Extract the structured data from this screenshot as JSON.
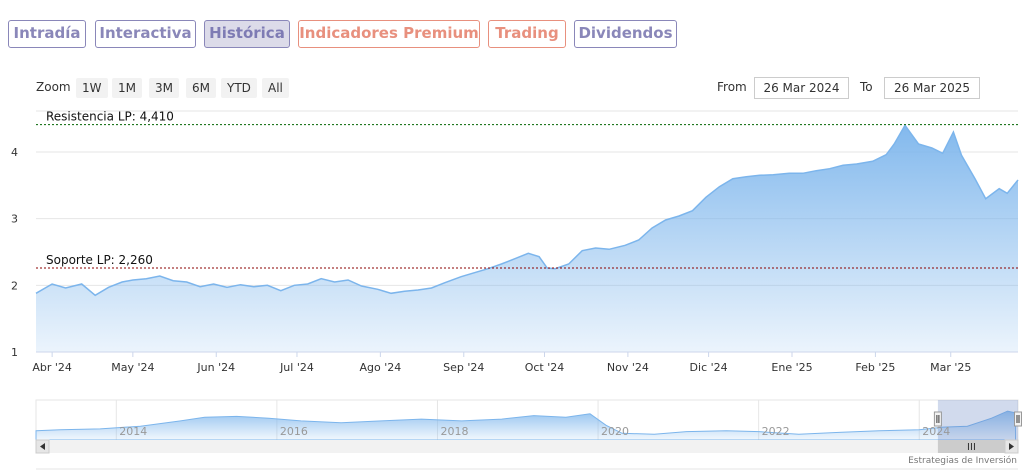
{
  "tabs": [
    {
      "label": "Intradía",
      "style": "purple"
    },
    {
      "label": "Interactiva",
      "style": "purple"
    },
    {
      "label": "Histórica",
      "style": "active"
    },
    {
      "label": "Indicadores Premium",
      "style": "salmon"
    },
    {
      "label": "Trading",
      "style": "salmon"
    },
    {
      "label": "Dividendos",
      "style": "purple"
    }
  ],
  "range_selector": {
    "zoom_label": "Zoom",
    "buttons": [
      "1W",
      "1M",
      "3M",
      "6M",
      "YTD",
      "All"
    ],
    "from_label": "From",
    "from_value": "26 Mar 2024",
    "to_label": "To",
    "to_value": "26 Mar 2025"
  },
  "credits": "Estrategias de Inversión",
  "colors": {
    "line": "#7cb5ec",
    "resistance": "#006400",
    "support": "#8b0000",
    "tab_purple": "#8a87b9",
    "tab_salmon": "#e8907e"
  },
  "chart_data": {
    "type": "area",
    "x_start": "2024-03-26",
    "x_end": "2025-03-26",
    "ylim": [
      1,
      4.6
    ],
    "y_ticks": [
      1,
      2,
      3,
      4
    ],
    "x_tick_labels": [
      {
        "label": "Abr '24",
        "date": "2024-04-01"
      },
      {
        "label": "May '24",
        "date": "2024-05-01"
      },
      {
        "label": "Jun '24",
        "date": "2024-06-01"
      },
      {
        "label": "Jul '24",
        "date": "2024-07-01"
      },
      {
        "label": "Ago '24",
        "date": "2024-08-01"
      },
      {
        "label": "Sep '24",
        "date": "2024-09-01"
      },
      {
        "label": "Oct '24",
        "date": "2024-10-01"
      },
      {
        "label": "Nov '24",
        "date": "2024-11-01"
      },
      {
        "label": "Dic '24",
        "date": "2024-12-01"
      },
      {
        "label": "Ene '25",
        "date": "2025-01-01"
      },
      {
        "label": "Feb '25",
        "date": "2025-02-01"
      },
      {
        "label": "Mar '25",
        "date": "2025-03-01"
      }
    ],
    "series": [
      {
        "x": [
          "2024-03-26",
          "2024-04-01",
          "2024-04-06",
          "2024-04-12",
          "2024-04-17",
          "2024-04-22",
          "2024-04-27",
          "2024-05-01",
          "2024-05-06",
          "2024-05-11",
          "2024-05-16",
          "2024-05-21",
          "2024-05-26",
          "2024-05-31",
          "2024-06-05",
          "2024-06-10",
          "2024-06-15",
          "2024-06-20",
          "2024-06-25",
          "2024-06-30",
          "2024-07-05",
          "2024-07-10",
          "2024-07-15",
          "2024-07-20",
          "2024-07-25",
          "2024-07-31",
          "2024-08-05",
          "2024-08-10",
          "2024-08-15",
          "2024-08-20",
          "2024-08-25",
          "2024-08-31",
          "2024-09-05",
          "2024-09-10",
          "2024-09-15",
          "2024-09-20",
          "2024-09-25",
          "2024-09-29",
          "2024-10-02",
          "2024-10-05",
          "2024-10-10",
          "2024-10-15",
          "2024-10-20",
          "2024-10-25",
          "2024-10-31",
          "2024-11-05",
          "2024-11-10",
          "2024-11-15",
          "2024-11-20",
          "2024-11-25",
          "2024-11-30",
          "2024-12-05",
          "2024-12-10",
          "2024-12-15",
          "2024-12-20",
          "2024-12-25",
          "2024-12-31",
          "2025-01-05",
          "2025-01-10",
          "2025-01-15",
          "2025-01-20",
          "2025-01-25",
          "2025-01-31",
          "2025-02-05",
          "2025-02-08",
          "2025-02-12",
          "2025-02-17",
          "2025-02-22",
          "2025-02-26",
          "2025-03-02",
          "2025-03-05",
          "2025-03-10",
          "2025-03-14",
          "2025-03-19",
          "2025-03-22",
          "2025-03-26"
        ],
        "values": [
          1.88,
          2.02,
          1.96,
          2.02,
          1.85,
          1.97,
          2.05,
          2.08,
          2.1,
          2.14,
          2.07,
          2.05,
          1.98,
          2.02,
          1.97,
          2.01,
          1.98,
          2.0,
          1.92,
          2.0,
          2.02,
          2.1,
          2.05,
          2.08,
          1.99,
          1.94,
          1.88,
          1.91,
          1.93,
          1.96,
          2.04,
          2.13,
          2.19,
          2.25,
          2.32,
          2.4,
          2.48,
          2.43,
          2.26,
          2.25,
          2.32,
          2.52,
          2.56,
          2.54,
          2.6,
          2.68,
          2.86,
          2.98,
          3.04,
          3.12,
          3.32,
          3.48,
          3.6,
          3.63,
          3.65,
          3.66,
          3.68,
          3.68,
          3.72,
          3.75,
          3.8,
          3.82,
          3.86,
          3.96,
          4.12,
          4.4,
          4.12,
          4.06,
          3.98,
          4.3,
          3.95,
          3.6,
          3.3,
          3.45,
          3.38,
          3.58
        ]
      }
    ],
    "annotations": [
      {
        "label": "Resistencia LP: 4,410",
        "value": 4.41,
        "color": "#006400"
      },
      {
        "label": "Soporte LP: 2,260",
        "value": 2.26,
        "color": "#8b0000"
      }
    ],
    "navigator": {
      "year_labels": [
        "2014",
        "2016",
        "2018",
        "2020",
        "2022",
        "2024"
      ],
      "first_year": 2013,
      "last_date": "2025-03-26",
      "window_from": "2024-03-26",
      "window_to": "2025-03-26",
      "points": [
        {
          "year": 2013.0,
          "value": 1.4
        },
        {
          "year": 2013.3,
          "value": 1.5
        },
        {
          "year": 2013.8,
          "value": 1.6
        },
        {
          "year": 2014.3,
          "value": 1.9
        },
        {
          "year": 2014.8,
          "value": 2.5
        },
        {
          "year": 2015.1,
          "value": 2.9
        },
        {
          "year": 2015.5,
          "value": 3.0
        },
        {
          "year": 2015.9,
          "value": 2.8
        },
        {
          "year": 2016.3,
          "value": 2.5
        },
        {
          "year": 2016.8,
          "value": 2.3
        },
        {
          "year": 2017.3,
          "value": 2.5
        },
        {
          "year": 2017.8,
          "value": 2.7
        },
        {
          "year": 2018.3,
          "value": 2.5
        },
        {
          "year": 2018.8,
          "value": 2.7
        },
        {
          "year": 2019.2,
          "value": 3.1
        },
        {
          "year": 2019.6,
          "value": 2.9
        },
        {
          "year": 2019.9,
          "value": 3.3
        },
        {
          "year": 2020.1,
          "value": 2.0
        },
        {
          "year": 2020.3,
          "value": 1.1
        },
        {
          "year": 2020.7,
          "value": 1.0
        },
        {
          "year": 2021.1,
          "value": 1.3
        },
        {
          "year": 2021.6,
          "value": 1.4
        },
        {
          "year": 2022.0,
          "value": 1.3
        },
        {
          "year": 2022.5,
          "value": 1.0
        },
        {
          "year": 2023.0,
          "value": 1.2
        },
        {
          "year": 2023.5,
          "value": 1.4
        },
        {
          "year": 2024.0,
          "value": 1.5
        },
        {
          "year": 2024.3,
          "value": 1.8
        },
        {
          "year": 2024.6,
          "value": 1.9
        },
        {
          "year": 2024.9,
          "value": 2.8
        },
        {
          "year": 2025.1,
          "value": 3.6
        },
        {
          "year": 2025.2,
          "value": 3.4
        }
      ]
    }
  }
}
